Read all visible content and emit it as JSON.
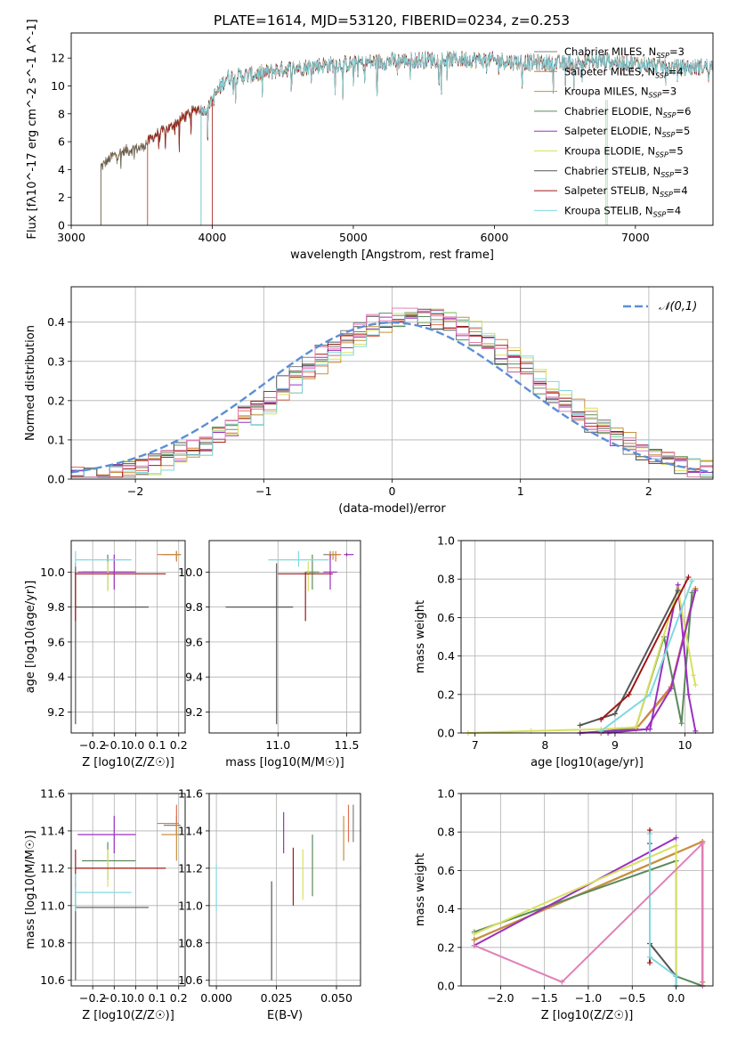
{
  "figure": {
    "title": "PLATE=1614, MJD=53120, FIBERID=0234, z=0.253"
  },
  "models": [
    {
      "name": "Chabrier MILES",
      "nssp": "3",
      "color": "#808080"
    },
    {
      "name": "Salpeter MILES",
      "nssp": "4",
      "color": "#e07055"
    },
    {
      "name": "Kroupa MILES",
      "nssp": "3",
      "color": "#c8913c"
    },
    {
      "name": "Chabrier ELODIE",
      "nssp": "6",
      "color": "#5a8a5a"
    },
    {
      "name": "Salpeter ELODIE",
      "nssp": "5",
      "color": "#9b30c0"
    },
    {
      "name": "Kroupa ELODIE",
      "nssp": "5",
      "color": "#d8e060"
    },
    {
      "name": "Chabrier STELIB",
      "nssp": "3",
      "color": "#555555"
    },
    {
      "name": "Salpeter STELIB",
      "nssp": "4",
      "color": "#a01818"
    },
    {
      "name": "Kroupa STELIB",
      "nssp": "4",
      "color": "#80d8e0"
    }
  ],
  "chart_data": [
    {
      "id": "spectrum",
      "type": "line",
      "title": "PLATE=1614, MJD=53120, FIBERID=0234, z=0.253",
      "xlabel": "wavelength [Angstrom, rest frame]",
      "ylabel": "Flux [fλ10^-17 erg cm^-2 s^-1 A^-1]",
      "xlim": [
        3000,
        7550
      ],
      "ylim": [
        0,
        13.8
      ],
      "xticks": [
        3000,
        4000,
        5000,
        6000,
        7000
      ],
      "yticks": [
        0,
        2,
        4,
        6,
        8,
        10,
        12
      ],
      "legend": "top-right",
      "continuum": {
        "x": [
          3210,
          3300,
          3400,
          3500,
          3600,
          3700,
          3800,
          3900,
          3950,
          4000,
          4100,
          4300,
          4500,
          4800,
          5000,
          5300,
          5600,
          5900,
          6200,
          6500,
          6800,
          7100,
          7300,
          7550
        ],
        "y": [
          4.2,
          5.0,
          5.4,
          5.6,
          6.5,
          7.0,
          7.8,
          8.4,
          8.2,
          9.0,
          10.6,
          10.8,
          11.2,
          11.5,
          11.6,
          11.8,
          11.9,
          11.9,
          11.7,
          11.6,
          11.8,
          11.5,
          11.3,
          11.4
        ]
      },
      "drops": [
        {
          "model": "Salpeter MILES",
          "start": 3540
        },
        {
          "model": "Kroupa ELODIE",
          "start": 3920
        },
        {
          "model": "Chabrier STELIB",
          "start": 3210
        },
        {
          "model": "Salpeter STELIB",
          "start": 3540
        },
        {
          "model": "Kroupa STELIB",
          "start": 3920
        }
      ]
    },
    {
      "id": "residuals",
      "type": "line",
      "xlabel": "(data-model)/error",
      "ylabel": "Normed distribution",
      "xlim": [
        -2.5,
        2.5
      ],
      "ylim": [
        0,
        0.49
      ],
      "xticks": [
        -2,
        -1,
        0,
        1,
        2
      ],
      "yticks": [
        0.0,
        0.1,
        0.2,
        0.3,
        0.4
      ],
      "grid": true,
      "legend": "top-right",
      "reference": {
        "name": "𝒩(0,1)",
        "color": "#5b8fd6"
      }
    },
    {
      "id": "age-vs-Z",
      "type": "scatter",
      "xlabel": "Z [log10(Z/Z☉)]",
      "ylabel": "age  [log10(age/yr)]",
      "xlim": [
        -0.3,
        0.23
      ],
      "ylim": [
        9.08,
        10.18
      ],
      "xticks": [
        -0.2,
        -0.1,
        0.0,
        0.1,
        0.2
      ],
      "yticks": [
        9.2,
        9.4,
        9.6,
        9.8,
        10.0
      ],
      "grid": true,
      "points": [
        {
          "model": "Chabrier MILES",
          "x": 0.19,
          "y": 10.1,
          "xerr": [
            0.06,
            0.02
          ],
          "yerr": [
            0.03,
            0.02
          ]
        },
        {
          "model": "Salpeter MILES",
          "x": 0.19,
          "y": 10.1,
          "xerr": [
            0.09,
            0.01
          ],
          "yerr": [
            0.04,
            0.02
          ]
        },
        {
          "model": "Kroupa MILES",
          "x": 0.19,
          "y": 10.1,
          "xerr": [
            0.07,
            0.02
          ],
          "yerr": [
            0.03,
            0.02
          ]
        },
        {
          "model": "Chabrier ELODIE",
          "x": -0.13,
          "y": 10.0,
          "xerr": [
            0.12,
            0.13
          ],
          "yerr": [
            0.1,
            0.1
          ]
        },
        {
          "model": "Salpeter ELODIE",
          "x": -0.1,
          "y": 10.0,
          "xerr": [
            0.17,
            0.1
          ],
          "yerr": [
            0.1,
            0.1
          ]
        },
        {
          "model": "Kroupa ELODIE",
          "x": -0.13,
          "y": 9.99,
          "xerr": [
            0.14,
            0.15
          ],
          "yerr": [
            0.1,
            0.07
          ]
        },
        {
          "model": "Chabrier STELIB",
          "x": -0.28,
          "y": 9.8,
          "xerr": [
            0.0,
            0.34
          ],
          "yerr": [
            0.67,
            0.25
          ]
        },
        {
          "model": "Salpeter STELIB",
          "x": -0.28,
          "y": 9.99,
          "xerr": [
            0.0,
            0.42
          ],
          "yerr": [
            0.27,
            0.01
          ]
        },
        {
          "model": "Kroupa STELIB",
          "x": -0.28,
          "y": 10.07,
          "xerr": [
            0.0,
            0.26
          ],
          "yerr": [
            0.04,
            0.05
          ]
        }
      ]
    },
    {
      "id": "age-vs-mass",
      "type": "scatter",
      "xlabel": "mass [log10(M/M☉)]",
      "ylabel": "",
      "xlim": [
        10.5,
        11.6
      ],
      "ylim": [
        9.08,
        10.18
      ],
      "xticks": [
        11.0,
        11.5
      ],
      "yticks": [
        9.2,
        9.4,
        9.6,
        9.8,
        10.0
      ],
      "grid": true,
      "points": [
        {
          "model": "Chabrier MILES",
          "x": 11.38,
          "y": 10.1,
          "xerr": [
            0.05,
            0.05
          ],
          "yerr": [
            0.03,
            0.02
          ]
        },
        {
          "model": "Salpeter MILES",
          "x": 11.42,
          "y": 10.1,
          "xerr": [
            0.05,
            0.04
          ],
          "yerr": [
            0.04,
            0.02
          ]
        },
        {
          "model": "Kroupa MILES",
          "x": 11.4,
          "y": 10.1,
          "xerr": [
            0.04,
            0.05
          ],
          "yerr": [
            0.03,
            0.02
          ]
        },
        {
          "model": "Chabrier ELODIE",
          "x": 11.25,
          "y": 10.0,
          "xerr": [
            0.05,
            0.05
          ],
          "yerr": [
            0.1,
            0.1
          ]
        },
        {
          "model": "Salpeter ELODIE",
          "x": 11.38,
          "y": 10.0,
          "xerr": [
            0.05,
            0.05
          ],
          "yerr": [
            0.1,
            0.1
          ]
        },
        {
          "model": "Kroupa ELODIE",
          "x": 11.22,
          "y": 9.99,
          "xerr": [
            0.05,
            0.05
          ],
          "yerr": [
            0.1,
            0.07
          ]
        },
        {
          "model": "Chabrier STELIB",
          "x": 10.99,
          "y": 9.8,
          "xerr": [
            0.37,
            0.12
          ],
          "yerr": [
            0.67,
            0.25
          ]
        },
        {
          "model": "Salpeter STELIB",
          "x": 11.2,
          "y": 9.99,
          "xerr": [
            0.2,
            0.2
          ],
          "yerr": [
            0.27,
            0.01
          ]
        },
        {
          "model": "Kroupa STELIB",
          "x": 11.15,
          "y": 10.07,
          "xerr": [
            0.22,
            0.22
          ],
          "yerr": [
            0.04,
            0.05
          ]
        },
        {
          "model": "Salpeter ELODIE",
          "x": 11.5,
          "y": 10.1,
          "xerr": [
            0.02,
            0.05
          ],
          "yerr": [
            0.01,
            0.01
          ]
        }
      ]
    },
    {
      "id": "weight-vs-age",
      "type": "line",
      "xlabel": "age  [log10(age/yr)]",
      "ylabel": "mass weight",
      "xlim": [
        6.8,
        10.4
      ],
      "ylim": [
        0,
        1.0
      ],
      "xticks": [
        7,
        8,
        9,
        10
      ],
      "yticks": [
        0.0,
        0.2,
        0.4,
        0.6,
        0.8,
        1.0
      ],
      "grid": true,
      "series": [
        {
          "model": "Chabrier MILES",
          "x": [
            8.8,
            9.3,
            9.8,
            10.15
          ],
          "y": [
            0.0,
            0.02,
            0.24,
            0.75
          ]
        },
        {
          "model": "Salpeter MILES",
          "x": [
            8.8,
            9.3,
            9.8,
            10.15
          ],
          "y": [
            0.0,
            0.02,
            0.24,
            0.75
          ]
        },
        {
          "model": "Kroupa MILES",
          "x": [
            8.8,
            9.3,
            9.8,
            10.15
          ],
          "y": [
            0.0,
            0.02,
            0.23,
            0.75
          ]
        },
        {
          "model": "Chabrier ELODIE",
          "x": [
            8.5,
            8.9,
            9.3,
            9.7,
            9.95,
            10.1
          ],
          "y": [
            0.0,
            0.01,
            0.03,
            0.5,
            0.05,
            0.73
          ]
        },
        {
          "model": "Salpeter ELODIE",
          "x": [
            8.5,
            9.0,
            9.5,
            9.9,
            10.05,
            10.15
          ],
          "y": [
            0.0,
            0.01,
            0.02,
            0.77,
            0.2,
            0.01
          ]
        },
        {
          "model": "Kroupa ELODIE",
          "x": [
            6.9,
            7.8,
            8.8,
            9.3,
            9.9,
            10.12,
            10.15
          ],
          "y": [
            0.0,
            0.01,
            0.02,
            0.03,
            0.75,
            0.3,
            0.25
          ]
        },
        {
          "model": "Chabrier STELIB",
          "x": [
            8.5,
            9.0,
            9.9
          ],
          "y": [
            0.04,
            0.1,
            0.74
          ]
        },
        {
          "model": "Salpeter STELIB",
          "x": [
            8.8,
            9.2,
            10.05
          ],
          "y": [
            0.07,
            0.2,
            0.81
          ]
        },
        {
          "model": "Kroupa STELIB",
          "x": [
            8.8,
            9.5,
            10.1
          ],
          "y": [
            0.01,
            0.2,
            0.79
          ]
        },
        {
          "model": "Salpeter ELODIE",
          "x": [
            8.9,
            9.45,
            9.8,
            10.15
          ],
          "y": [
            0.0,
            0.02,
            0.23,
            0.74
          ]
        }
      ]
    },
    {
      "id": "mass-vs-Z",
      "type": "scatter",
      "xlabel": "Z [log10(Z/Z☉)]",
      "ylabel": "mass [log10(M/M☉)]",
      "xlim": [
        -0.3,
        0.23
      ],
      "ylim": [
        10.57,
        11.6
      ],
      "xticks": [
        -0.2,
        -0.1,
        0.0,
        0.1,
        0.2
      ],
      "yticks": [
        10.6,
        10.8,
        11.0,
        11.2,
        11.4,
        11.6
      ],
      "grid": true,
      "points": [
        {
          "model": "Chabrier MILES",
          "x": 0.19,
          "y": 11.43,
          "xerr": [
            0.06,
            0.02
          ],
          "yerr": [
            0.05,
            0.05
          ]
        },
        {
          "model": "Salpeter MILES",
          "x": 0.19,
          "y": 11.44,
          "xerr": [
            0.09,
            0.01
          ],
          "yerr": [
            0.05,
            0.1
          ]
        },
        {
          "model": "Kroupa MILES",
          "x": 0.19,
          "y": 11.38,
          "xerr": [
            0.07,
            0.02
          ],
          "yerr": [
            0.14,
            0.06
          ]
        },
        {
          "model": "Chabrier ELODIE",
          "x": -0.13,
          "y": 11.24,
          "xerr": [
            0.12,
            0.13
          ],
          "yerr": [
            0.1,
            0.1
          ]
        },
        {
          "model": "Salpeter ELODIE",
          "x": -0.1,
          "y": 11.38,
          "xerr": [
            0.17,
            0.1
          ],
          "yerr": [
            0.1,
            0.1
          ]
        },
        {
          "model": "Kroupa ELODIE",
          "x": -0.13,
          "y": 11.2,
          "xerr": [
            0.14,
            0.15
          ],
          "yerr": [
            0.1,
            0.1
          ]
        },
        {
          "model": "Chabrier STELIB",
          "x": -0.28,
          "y": 10.99,
          "xerr": [
            0.0,
            0.34
          ],
          "yerr": [
            0.39,
            0.13
          ]
        },
        {
          "model": "Salpeter STELIB",
          "x": -0.28,
          "y": 11.2,
          "xerr": [
            0.0,
            0.42
          ],
          "yerr": [
            0.1,
            0.1
          ]
        },
        {
          "model": "Kroupa STELIB",
          "x": -0.28,
          "y": 11.07,
          "xerr": [
            0.0,
            0.26
          ],
          "yerr": [
            0.1,
            0.1
          ]
        }
      ]
    },
    {
      "id": "mass-vs-ebv",
      "type": "scatter",
      "xlabel": "E(B-V)",
      "ylabel": "",
      "xlim": [
        -0.003,
        0.06
      ],
      "ylim": [
        10.57,
        11.6
      ],
      "xticks": [
        0.0,
        0.025,
        0.05
      ],
      "yticks": [
        10.6,
        10.8,
        11.0,
        11.2,
        11.4,
        11.6
      ],
      "grid": true,
      "points": [
        {
          "model": "Kroupa STELIB",
          "x": 0.0,
          "y": 11.07,
          "yerr": [
            0.1,
            0.15
          ]
        },
        {
          "model": "Chabrier STELIB",
          "x": 0.023,
          "y": 10.99,
          "yerr": [
            0.39,
            0.14
          ]
        },
        {
          "model": "Salpeter ELODIE",
          "x": 0.028,
          "y": 11.38,
          "yerr": [
            0.1,
            0.12
          ]
        },
        {
          "model": "Salpeter STELIB",
          "x": 0.032,
          "y": 11.2,
          "yerr": [
            0.2,
            0.11
          ]
        },
        {
          "model": "Kroupa ELODIE",
          "x": 0.036,
          "y": 11.2,
          "yerr": [
            0.17,
            0.1
          ]
        },
        {
          "model": "Chabrier ELODIE",
          "x": 0.04,
          "y": 11.24,
          "yerr": [
            0.19,
            0.14
          ]
        },
        {
          "model": "Kroupa MILES",
          "x": 0.053,
          "y": 11.38,
          "yerr": [
            0.14,
            0.1
          ]
        },
        {
          "model": "Salpeter MILES",
          "x": 0.055,
          "y": 11.44,
          "yerr": [
            0.1,
            0.1
          ]
        },
        {
          "model": "Chabrier MILES",
          "x": 0.057,
          "y": 11.43,
          "yerr": [
            0.09,
            0.11
          ]
        }
      ]
    },
    {
      "id": "weight-vs-Z",
      "type": "line",
      "xlabel": "Z [log10(Z/Z☉)]",
      "ylabel": "mass weight",
      "xlim": [
        -2.45,
        0.42
      ],
      "ylim": [
        0,
        1.0
      ],
      "xticks": [
        -2.0,
        -1.5,
        -1.0,
        -0.5,
        0.0
      ],
      "yticks": [
        0.0,
        0.2,
        0.4,
        0.6,
        0.8,
        1.0
      ],
      "grid": true,
      "series": [
        {
          "model": "Chabrier MILES",
          "x": [
            -2.3,
            0.3,
            0.3,
            0.3
          ],
          "y": [
            0.24,
            0.75,
            0.02,
            0.0
          ]
        },
        {
          "model": "Salpeter MILES",
          "x": [
            -2.3,
            0.3,
            0.3
          ],
          "y": [
            0.24,
            0.75,
            0.0
          ]
        },
        {
          "model": "Kroupa MILES",
          "x": [
            -2.3,
            0.3,
            0.3
          ],
          "y": [
            0.24,
            0.75,
            0.02
          ]
        },
        {
          "model": "Chabrier ELODIE",
          "x": [
            -2.3,
            0.0,
            0.0,
            0.3
          ],
          "y": [
            0.28,
            0.65,
            0.05,
            0.0
          ]
        },
        {
          "model": "Salpeter ELODIE",
          "x": [
            -2.3,
            0.0
          ],
          "y": [
            0.21,
            0.77
          ]
        },
        {
          "model": "Kroupa ELODIE",
          "x": [
            -2.3,
            0.0,
            0.0
          ],
          "y": [
            0.27,
            0.73,
            0.0
          ]
        },
        {
          "model": "Chabrier STELIB",
          "x": [
            -0.3,
            -0.3,
            0.0,
            0.0
          ],
          "y": [
            0.74,
            0.22,
            0.05,
            0.0
          ]
        },
        {
          "model": "Salpeter STELIB",
          "x": [
            -0.3,
            -0.3
          ],
          "y": [
            0.81,
            0.12
          ]
        },
        {
          "model": "Kroupa STELIB",
          "x": [
            -0.3,
            -0.3,
            0.0,
            0.0
          ],
          "y": [
            0.79,
            0.15,
            0.05,
            0.0
          ]
        },
        {
          "model": "pink",
          "x": [
            -2.3,
            -1.3,
            0.3,
            0.3
          ],
          "y": [
            0.21,
            0.02,
            0.74,
            0.0
          ]
        }
      ]
    }
  ]
}
